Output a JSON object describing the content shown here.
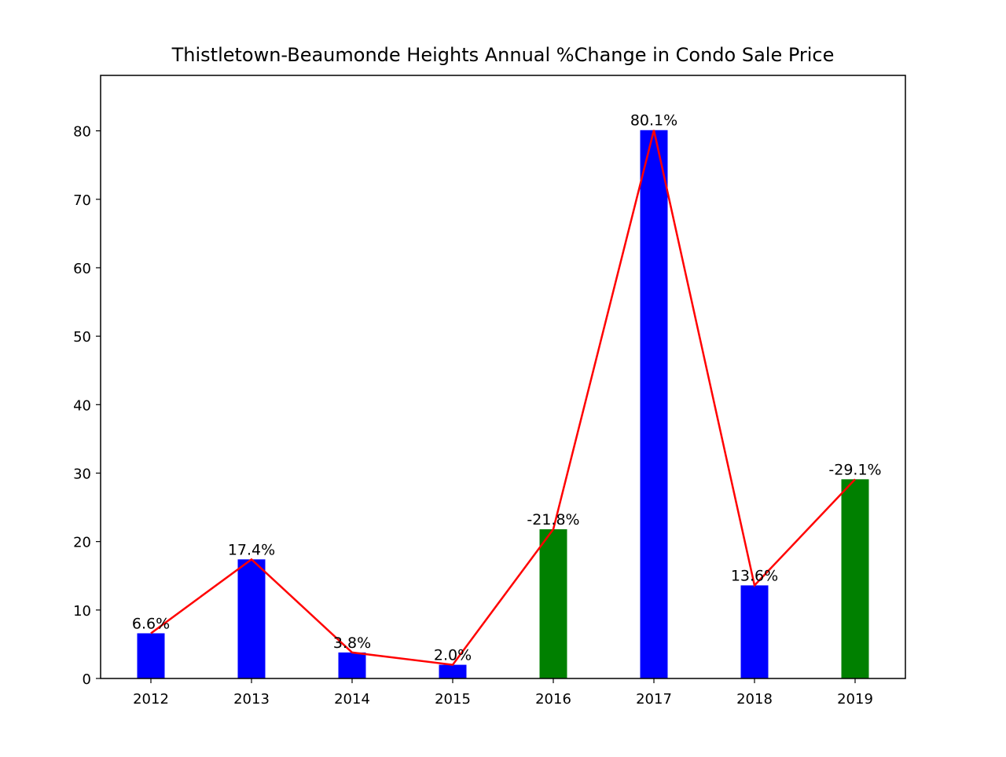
{
  "chart_data": {
    "type": "bar",
    "title": "Thistletown-Beaumonde Heights Annual %Change in Condo Sale Price",
    "xlabel": "",
    "ylabel": "",
    "categories": [
      "2012",
      "2013",
      "2014",
      "2015",
      "2016",
      "2017",
      "2018",
      "2019"
    ],
    "values": [
      6.6,
      17.4,
      3.8,
      2.0,
      21.8,
      80.1,
      13.6,
      29.1
    ],
    "signed_change": [
      6.6,
      17.4,
      3.8,
      2.0,
      -21.8,
      80.1,
      13.6,
      -29.1
    ],
    "data_labels": [
      "6.6%",
      "17.4%",
      "3.8%",
      "2.0%",
      "-21.8%",
      "80.1%",
      "13.6%",
      "-29.1%"
    ],
    "bar_colors": [
      "#0000ff",
      "#0000ff",
      "#0000ff",
      "#0000ff",
      "#008000",
      "#0000ff",
      "#0000ff",
      "#008000"
    ],
    "line_series": {
      "color": "#ff0000",
      "values": [
        6.6,
        17.4,
        3.8,
        2.0,
        21.8,
        80.1,
        13.6,
        29.1
      ]
    },
    "yticks": [
      0,
      10,
      20,
      30,
      40,
      50,
      60,
      70,
      80
    ],
    "ylim": [
      0,
      88.1
    ],
    "grid": false,
    "legend": "none"
  }
}
